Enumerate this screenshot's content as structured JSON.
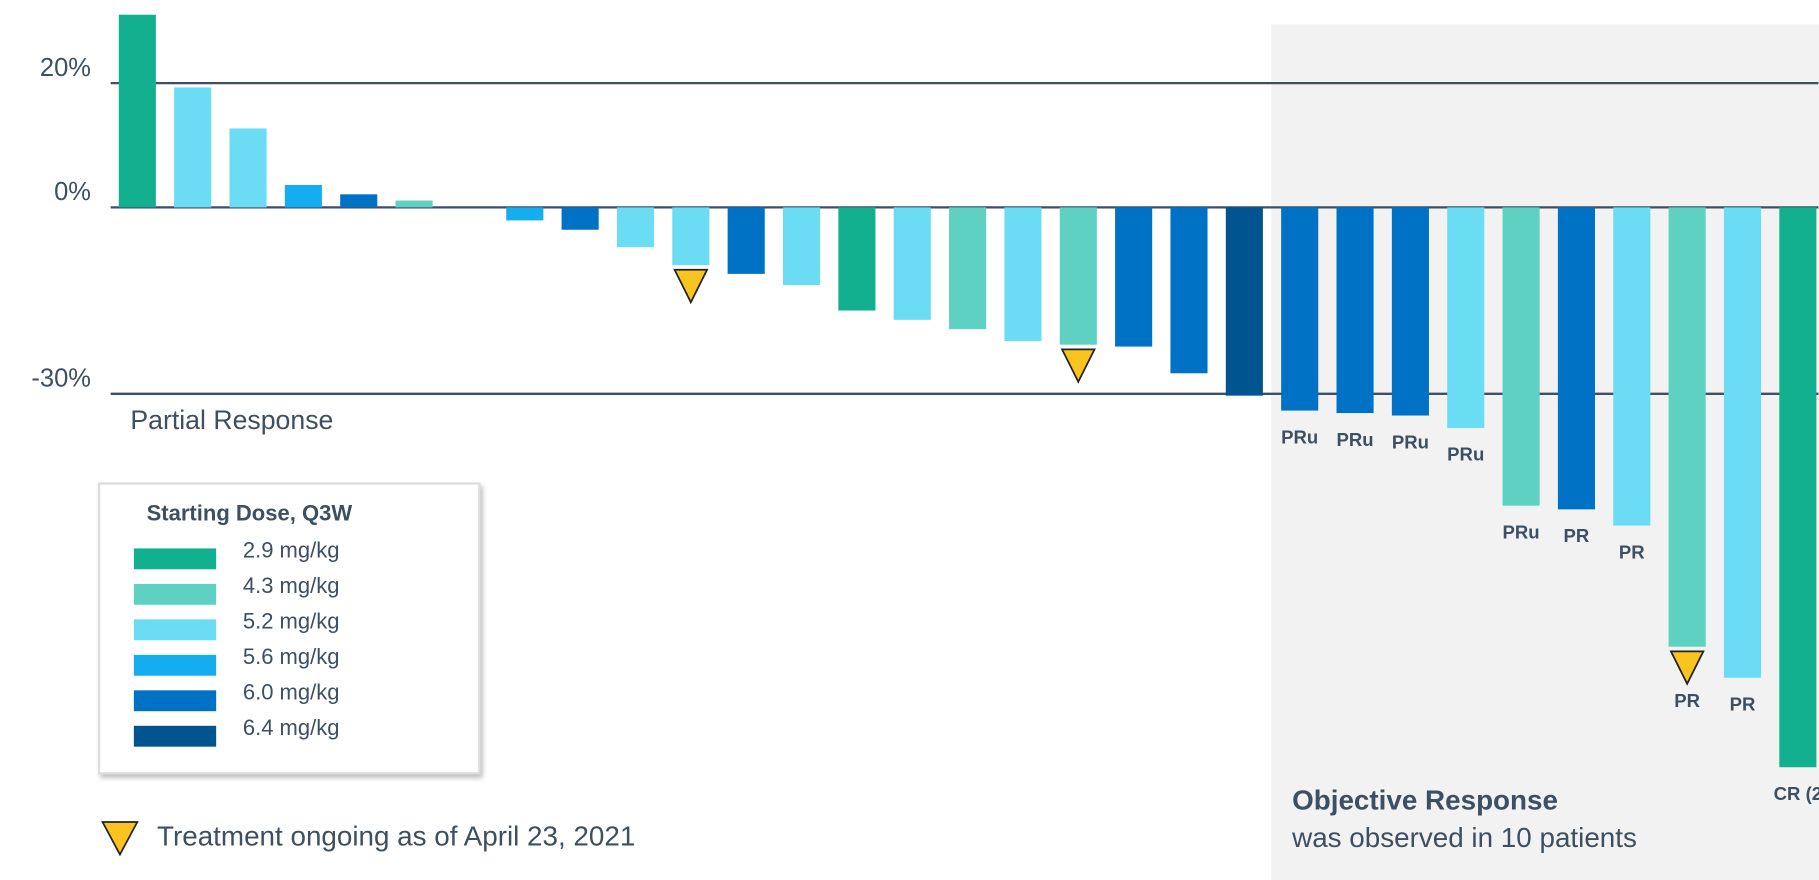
{
  "chart_data": {
    "type": "bar",
    "values": [
      31,
      19.3,
      12.7,
      3.6,
      2.1,
      1.1,
      0,
      -2.1,
      -3.6,
      -6.4,
      -9.3,
      -10.7,
      -12.5,
      -16.6,
      -18.1,
      -19.6,
      -21.5,
      -22.1,
      -22.4,
      -26.7,
      -30.3,
      -32.7,
      -33.1,
      -33.5,
      -35.5,
      -48,
      -48.6,
      -51.2,
      -70.7,
      -75.7,
      -90.1
    ],
    "colors": [
      "#12b08f",
      "#6adcf4",
      "#6adcf4",
      "#14aef0",
      "#0072c6",
      "#5fd1c2",
      "#6adcf4",
      "#14aef0",
      "#0072c6",
      "#6adcf4",
      "#6adcf4",
      "#0072c6",
      "#6adcf4",
      "#12b08f",
      "#6adcf4",
      "#5fd1c2",
      "#6adcf4",
      "#5fd1c2",
      "#0072c6",
      "#0072c6",
      "#005590",
      "#0072c6",
      "#0072c6",
      "#0072c6",
      "#6adcf4",
      "#5fd1c2",
      "#0072c6",
      "#6adcf4",
      "#5fd1c2",
      "#6adcf4",
      "#12b08f"
    ],
    "response_labels": [
      null,
      null,
      null,
      null,
      null,
      null,
      null,
      null,
      null,
      null,
      null,
      null,
      null,
      null,
      null,
      null,
      null,
      null,
      null,
      null,
      null,
      "PRu",
      "PRu",
      "PRu",
      "PRu",
      "PRu",
      "PR",
      "PR",
      "PR",
      "PR",
      "CR (2"
    ],
    "ongoing": [
      false,
      false,
      false,
      false,
      false,
      false,
      false,
      false,
      false,
      false,
      true,
      false,
      false,
      false,
      false,
      false,
      false,
      true,
      false,
      false,
      false,
      false,
      false,
      false,
      false,
      false,
      false,
      false,
      true,
      false,
      false
    ],
    "ylim": [
      -95,
      33
    ],
    "yticks": [
      {
        "value": 20,
        "label": "20%"
      },
      {
        "value": 0,
        "label": "0%"
      },
      {
        "value": -30,
        "label": "-30%"
      }
    ],
    "grid": true,
    "annotations": {
      "partial": "Partial Response",
      "or_title": "Objective Response",
      "or_text": "was observed in 10 patients",
      "ongoing_legend": "Treatment ongoing as of April 23, 2021"
    },
    "legend": {
      "title": "Starting Dose, Q3W",
      "series": [
        {
          "name": "2.9 mg/kg",
          "color": "#12b08f"
        },
        {
          "name": "4.3 mg/kg",
          "color": "#5fd1c2"
        },
        {
          "name": "5.2 mg/kg",
          "color": "#6adcf4"
        },
        {
          "name": "5.6 mg/kg",
          "color": "#14aef0"
        },
        {
          "name": "6.0 mg/kg",
          "color": "#0072c6"
        },
        {
          "name": "6.4 mg/kg",
          "color": "#005590"
        }
      ]
    }
  }
}
